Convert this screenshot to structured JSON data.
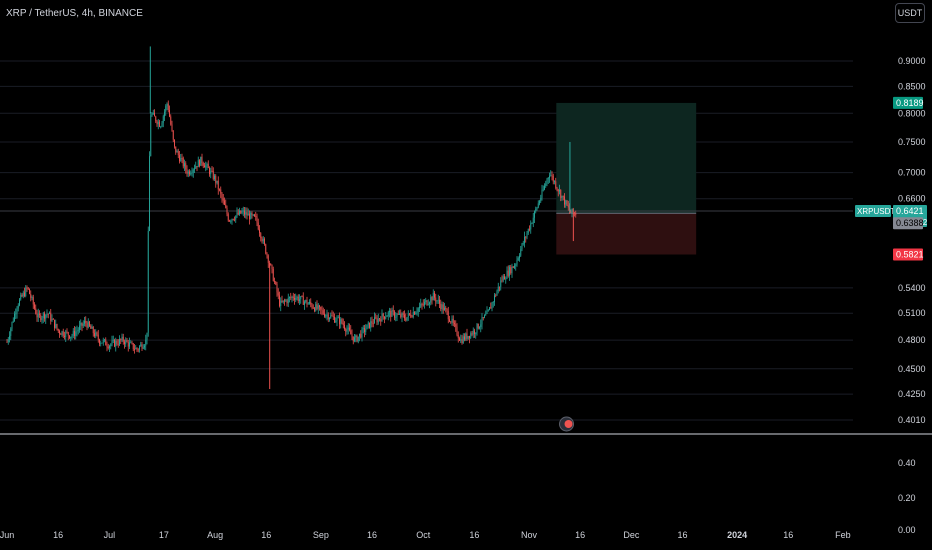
{
  "header": {
    "title": "XRP / TetherUS, 4h, BINANCE",
    "currency_button": "USDT"
  },
  "chart_data": {
    "type": "candlestick",
    "symbol": "XRPUSDT",
    "title": "XRP / TetherUS, 4h, BINANCE",
    "x_ticks": [
      "Jun",
      "16",
      "Jul",
      "17",
      "Aug",
      "16",
      "Sep",
      "16",
      "Oct",
      "16",
      "Nov",
      "16",
      "Dec",
      "16",
      "2024",
      "16",
      "Feb"
    ],
    "y_ticks_main": [
      "0.9000",
      "0.8500",
      "0.8000",
      "0.7500",
      "0.7000",
      "0.6600",
      "0.5400",
      "0.5100",
      "0.4800",
      "0.4500",
      "0.4250",
      "0.4010"
    ],
    "y_ticks_lower": [
      "0.40",
      "0.20",
      "0.00"
    ],
    "y_scale": "log",
    "price_labels": {
      "target": "0.8189",
      "symbol": "XRPUSDT",
      "last": "0.6421",
      "countdown": "01:04:42",
      "entry": "0.6388",
      "stop": "0.5821"
    },
    "position": {
      "entry": 0.6388,
      "target": 0.8189,
      "stop": 0.5821,
      "start": "Nov 9",
      "end": "Dec 20"
    },
    "price_path": [
      [
        "Jun 1",
        0.478
      ],
      [
        "Jun 4",
        0.52
      ],
      [
        "Jun 7",
        0.54
      ],
      [
        "Jun 10",
        0.505
      ],
      [
        "Jun 13",
        0.51
      ],
      [
        "Jun 16",
        0.49
      ],
      [
        "Jun 20",
        0.485
      ],
      [
        "Jun 24",
        0.5
      ],
      [
        "Jun 28",
        0.48
      ],
      [
        "Jul 1",
        0.475
      ],
      [
        "Jul 5",
        0.48
      ],
      [
        "Jul 9",
        0.47
      ],
      [
        "Jul 12",
        0.48
      ],
      [
        "Jul 13",
        0.8
      ],
      [
        "Jul 16",
        0.78
      ],
      [
        "Jul 18",
        0.82
      ],
      [
        "Jul 20",
        0.74
      ],
      [
        "Jul 24",
        0.7
      ],
      [
        "Jul 28",
        0.72
      ],
      [
        "Aug 1",
        0.69
      ],
      [
        "Aug 5",
        0.63
      ],
      [
        "Aug 9",
        0.64
      ],
      [
        "Aug 13",
        0.63
      ],
      [
        "Aug 17",
        0.57
      ],
      [
        "Aug 20",
        0.52
      ],
      [
        "Aug 24",
        0.53
      ],
      [
        "Aug 29",
        0.52
      ],
      [
        "Sep 2",
        0.51
      ],
      [
        "Sep 7",
        0.5
      ],
      [
        "Sep 11",
        0.48
      ],
      [
        "Sep 16",
        0.5
      ],
      [
        "Sep 21",
        0.51
      ],
      [
        "Sep 26",
        0.505
      ],
      [
        "Oct 1",
        0.52
      ],
      [
        "Oct 4",
        0.53
      ],
      [
        "Oct 8",
        0.51
      ],
      [
        "Oct 12",
        0.48
      ],
      [
        "Oct 16",
        0.49
      ],
      [
        "Oct 20",
        0.51
      ],
      [
        "Oct 24",
        0.55
      ],
      [
        "Oct 28",
        0.57
      ],
      [
        "Nov 2",
        0.63
      ],
      [
        "Nov 5",
        0.67
      ],
      [
        "Nov 7",
        0.7
      ],
      [
        "Nov 9",
        0.68
      ],
      [
        "Nov 11",
        0.66
      ],
      [
        "Nov 13",
        0.64
      ],
      [
        "Nov 15",
        0.6388
      ]
    ],
    "spike_highs": [
      [
        "Jul 13",
        0.93
      ],
      [
        "Nov 13",
        0.75
      ]
    ],
    "spike_lows": [
      [
        "Aug 17",
        0.43
      ],
      [
        "Nov 14",
        0.6
      ]
    ],
    "colors": {
      "up": "#26a69a",
      "down": "#ef5350",
      "target_zone": "#0d2620",
      "stop_zone": "#2e0f10",
      "target_label": "#089981",
      "stop_label": "#f23645",
      "entry_label": "#5d606b",
      "grid": "#1a1d26"
    }
  }
}
